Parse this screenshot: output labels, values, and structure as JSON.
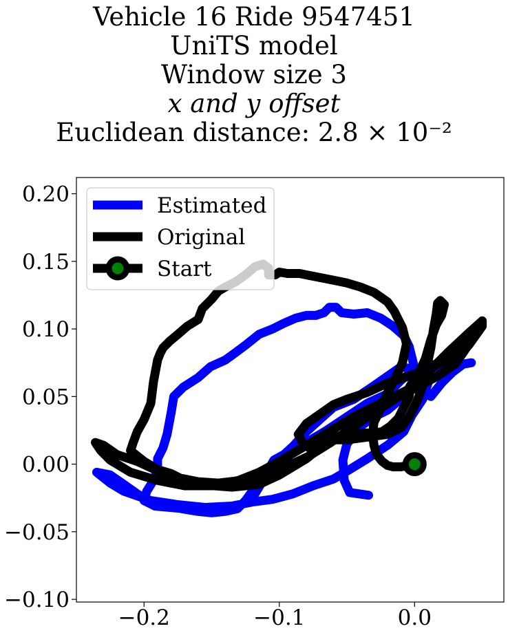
{
  "chart_data": {
    "type": "line",
    "title_lines": [
      "Vehicle 16 Ride 9547451",
      "UniTS model",
      "Window size 3",
      "x and y offset",
      "Euclidean distance: 2.8 × 10⁻²"
    ],
    "xlabel": "",
    "ylabel": "",
    "xlim": [
      -0.25,
      0.066
    ],
    "ylim": [
      -0.102,
      0.212
    ],
    "x_ticks": [
      -0.2,
      -0.1,
      0.0
    ],
    "x_tick_labels": [
      "−0.2",
      "−0.1",
      "0.0"
    ],
    "y_ticks": [
      0.2,
      0.15,
      0.1,
      0.05,
      0.0,
      -0.05,
      -0.1
    ],
    "y_tick_labels": [
      "0.20",
      "0.15",
      "0.10",
      "0.05",
      "0.00",
      "−0.05",
      "−0.10"
    ],
    "grid": false,
    "legend_position": "top-left",
    "legend": [
      "Estimated",
      "Original",
      "Start"
    ],
    "series": [
      {
        "name": "Estimated",
        "color": "#0000ff",
        "points": [
          [
            -0.034,
            -0.023
          ],
          [
            -0.048,
            -0.021
          ],
          [
            -0.052,
            -0.012
          ],
          [
            -0.053,
            0.003
          ],
          [
            -0.05,
            0.015
          ],
          [
            -0.04,
            0.028
          ],
          [
            -0.03,
            0.035
          ],
          [
            -0.02,
            0.04
          ],
          [
            -0.008,
            0.05
          ],
          [
            -0.002,
            0.06
          ],
          [
            0.003,
            0.067
          ],
          [
            0.012,
            0.07
          ],
          [
            0.02,
            0.075
          ],
          [
            0.0,
            0.07
          ],
          [
            -0.01,
            0.062
          ],
          [
            -0.02,
            0.052
          ],
          [
            -0.035,
            0.045
          ],
          [
            -0.05,
            0.035
          ],
          [
            -0.065,
            0.025
          ],
          [
            -0.08,
            0.016
          ],
          [
            -0.095,
            0.008
          ],
          [
            -0.104,
            0.003
          ],
          [
            -0.108,
            -0.004
          ],
          [
            -0.114,
            -0.01
          ],
          [
            -0.12,
            -0.02
          ],
          [
            -0.125,
            -0.027
          ],
          [
            -0.131,
            -0.033
          ],
          [
            -0.14,
            -0.035
          ],
          [
            -0.15,
            -0.036
          ],
          [
            -0.16,
            -0.035
          ],
          [
            -0.172,
            -0.033
          ],
          [
            -0.185,
            -0.03
          ],
          [
            -0.195,
            -0.028
          ],
          [
            -0.205,
            -0.022
          ],
          [
            -0.215,
            -0.015
          ],
          [
            -0.225,
            -0.008
          ],
          [
            -0.235,
            -0.006
          ],
          [
            -0.225,
            -0.014
          ],
          [
            -0.215,
            -0.02
          ],
          [
            -0.195,
            -0.027
          ],
          [
            -0.175,
            -0.03
          ],
          [
            -0.155,
            -0.032
          ],
          [
            -0.135,
            -0.031
          ],
          [
            -0.12,
            -0.028
          ],
          [
            -0.105,
            -0.026
          ],
          [
            -0.09,
            -0.022
          ],
          [
            -0.075,
            -0.016
          ],
          [
            -0.06,
            -0.011
          ],
          [
            -0.048,
            -0.004
          ],
          [
            -0.035,
            0.004
          ],
          [
            -0.02,
            0.014
          ],
          [
            -0.008,
            0.024
          ],
          [
            -0.002,
            0.036
          ],
          [
            0.006,
            0.048
          ],
          [
            0.01,
            0.06
          ],
          [
            0.005,
            0.069
          ],
          [
            -0.01,
            0.072
          ],
          [
            -0.03,
            0.058
          ],
          [
            -0.045,
            0.048
          ],
          [
            -0.06,
            0.042
          ],
          [
            -0.07,
            0.033
          ],
          [
            -0.08,
            0.024
          ],
          [
            -0.09,
            0.013
          ],
          [
            -0.1,
            0.004
          ],
          [
            -0.105,
            -0.004
          ],
          [
            -0.112,
            -0.012
          ],
          [
            -0.118,
            -0.022
          ],
          [
            -0.128,
            -0.03
          ],
          [
            -0.15,
            -0.034
          ],
          [
            -0.17,
            -0.033
          ],
          [
            -0.192,
            -0.031
          ],
          [
            -0.2,
            -0.027
          ],
          [
            -0.198,
            -0.02
          ],
          [
            -0.193,
            -0.012
          ],
          [
            -0.19,
            -0.004
          ],
          [
            -0.19,
            0.004
          ],
          [
            -0.186,
            0.012
          ],
          [
            -0.183,
            0.022
          ],
          [
            -0.18,
            0.038
          ],
          [
            -0.178,
            0.05
          ],
          [
            -0.171,
            0.057
          ],
          [
            -0.16,
            0.064
          ],
          [
            -0.151,
            0.072
          ],
          [
            -0.14,
            0.077
          ],
          [
            -0.133,
            0.082
          ],
          [
            -0.125,
            0.088
          ],
          [
            -0.115,
            0.096
          ],
          [
            -0.105,
            0.1
          ],
          [
            -0.097,
            0.104
          ],
          [
            -0.088,
            0.108
          ],
          [
            -0.08,
            0.11
          ],
          [
            -0.073,
            0.11
          ],
          [
            -0.067,
            0.112
          ],
          [
            -0.063,
            0.116
          ],
          [
            -0.058,
            0.116
          ],
          [
            -0.054,
            0.112
          ],
          [
            -0.045,
            0.111
          ],
          [
            -0.035,
            0.112
          ],
          [
            -0.025,
            0.108
          ],
          [
            -0.016,
            0.102
          ],
          [
            -0.008,
            0.095
          ],
          [
            -0.004,
            0.087
          ],
          [
            -0.001,
            0.075
          ],
          [
            0.002,
            0.062
          ],
          [
            0.005,
            0.055
          ],
          [
            0.012,
            0.05
          ],
          [
            0.02,
            0.06
          ],
          [
            0.028,
            0.068
          ],
          [
            0.036,
            0.074
          ],
          [
            0.042,
            0.075
          ]
        ]
      },
      {
        "name": "Original",
        "color": "#000000",
        "points": [
          [
            0.0,
            0.0
          ],
          [
            -0.01,
            -0.002
          ],
          [
            -0.016,
            -0.002
          ],
          [
            -0.02,
            -0.001
          ],
          [
            -0.024,
            0.002
          ],
          [
            -0.028,
            0.007
          ],
          [
            -0.03,
            0.014
          ],
          [
            -0.031,
            0.022
          ],
          [
            -0.03,
            0.031
          ],
          [
            -0.026,
            0.039
          ],
          [
            -0.021,
            0.051
          ],
          [
            -0.015,
            0.062
          ],
          [
            -0.009,
            0.075
          ],
          [
            -0.006,
            0.089
          ],
          [
            -0.009,
            0.101
          ],
          [
            -0.015,
            0.113
          ],
          [
            -0.02,
            0.12
          ],
          [
            -0.03,
            0.127
          ],
          [
            -0.04,
            0.131
          ],
          [
            -0.05,
            0.134
          ],
          [
            -0.06,
            0.136
          ],
          [
            -0.07,
            0.138
          ],
          [
            -0.08,
            0.14
          ],
          [
            -0.085,
            0.141
          ],
          [
            -0.094,
            0.141
          ],
          [
            -0.1,
            0.142
          ],
          [
            -0.103,
            0.14
          ],
          [
            -0.108,
            0.14
          ],
          [
            -0.108,
            0.145
          ],
          [
            -0.112,
            0.148
          ],
          [
            -0.118,
            0.146
          ],
          [
            -0.125,
            0.14
          ],
          [
            -0.132,
            0.135
          ],
          [
            -0.14,
            0.131
          ],
          [
            -0.145,
            0.128
          ],
          [
            -0.15,
            0.122
          ],
          [
            -0.157,
            0.115
          ],
          [
            -0.16,
            0.107
          ],
          [
            -0.168,
            0.102
          ],
          [
            -0.175,
            0.096
          ],
          [
            -0.181,
            0.091
          ],
          [
            -0.186,
            0.086
          ],
          [
            -0.188,
            0.082
          ],
          [
            -0.19,
            0.077
          ],
          [
            -0.193,
            0.061
          ],
          [
            -0.195,
            0.045
          ],
          [
            -0.2,
            0.033
          ],
          [
            -0.205,
            0.024
          ],
          [
            -0.208,
            0.016
          ],
          [
            -0.21,
            0.01
          ],
          [
            -0.2,
            0.002
          ],
          [
            -0.19,
            -0.004
          ],
          [
            -0.18,
            -0.007
          ],
          [
            -0.17,
            -0.012
          ],
          [
            -0.16,
            -0.015
          ],
          [
            -0.148,
            -0.016
          ],
          [
            -0.135,
            -0.017
          ],
          [
            -0.125,
            -0.016
          ],
          [
            -0.115,
            -0.015
          ],
          [
            -0.1,
            -0.008
          ],
          [
            -0.09,
            -0.002
          ],
          [
            -0.08,
            0.004
          ],
          [
            -0.07,
            0.012
          ],
          [
            -0.06,
            0.02
          ],
          [
            -0.045,
            0.023
          ],
          [
            -0.03,
            0.023
          ],
          [
            -0.024,
            0.024
          ],
          [
            -0.018,
            0.028
          ],
          [
            -0.012,
            0.034
          ],
          [
            -0.008,
            0.042
          ],
          [
            -0.004,
            0.05
          ],
          [
            -0.003,
            0.058
          ],
          [
            0.002,
            0.065
          ],
          [
            0.008,
            0.078
          ],
          [
            0.012,
            0.092
          ],
          [
            0.016,
            0.103
          ],
          [
            0.02,
            0.11
          ],
          [
            0.022,
            0.118
          ],
          [
            0.019,
            0.121
          ],
          [
            0.017,
            0.119
          ],
          [
            0.016,
            0.111
          ],
          [
            0.014,
            0.1
          ],
          [
            0.012,
            0.086
          ],
          [
            0.009,
            0.072
          ],
          [
            0.006,
            0.058
          ],
          [
            0.002,
            0.047
          ],
          [
            -0.004,
            0.035
          ],
          [
            -0.01,
            0.027
          ],
          [
            -0.02,
            0.022
          ],
          [
            -0.035,
            0.02
          ],
          [
            -0.05,
            0.018
          ],
          [
            -0.065,
            0.018
          ],
          [
            -0.078,
            0.012
          ],
          [
            -0.083,
            0.016
          ],
          [
            -0.086,
            0.022
          ],
          [
            -0.08,
            0.03
          ],
          [
            -0.07,
            0.037
          ],
          [
            -0.06,
            0.044
          ],
          [
            -0.05,
            0.048
          ],
          [
            -0.035,
            0.053
          ],
          [
            -0.02,
            0.06
          ],
          [
            -0.005,
            0.065
          ],
          [
            0.01,
            0.07
          ],
          [
            0.025,
            0.078
          ],
          [
            0.04,
            0.088
          ],
          [
            0.05,
            0.102
          ],
          [
            0.05,
            0.106
          ],
          [
            0.04,
            0.097
          ],
          [
            0.025,
            0.083
          ],
          [
            0.01,
            0.068
          ],
          [
            -0.005,
            0.055
          ],
          [
            -0.025,
            0.045
          ],
          [
            -0.045,
            0.035
          ],
          [
            -0.065,
            0.023
          ],
          [
            -0.085,
            0.011
          ],
          [
            -0.1,
            0.002
          ],
          [
            -0.115,
            -0.006
          ],
          [
            -0.13,
            -0.012
          ],
          [
            -0.15,
            -0.016
          ],
          [
            -0.17,
            -0.016
          ],
          [
            -0.19,
            -0.012
          ],
          [
            -0.21,
            -0.006
          ],
          [
            -0.225,
            0.003
          ],
          [
            -0.232,
            0.01
          ],
          [
            -0.236,
            0.016
          ],
          [
            -0.23,
            0.014
          ],
          [
            -0.22,
            0.007
          ],
          [
            -0.205,
            0.002
          ],
          [
            -0.19,
            -0.005
          ],
          [
            -0.175,
            -0.01
          ],
          [
            -0.16,
            -0.013
          ],
          [
            -0.145,
            -0.014
          ],
          [
            -0.128,
            -0.012
          ],
          [
            -0.112,
            -0.008
          ],
          [
            -0.095,
            -0.002
          ],
          [
            -0.078,
            0.006
          ],
          [
            -0.062,
            0.016
          ],
          [
            -0.045,
            0.028
          ],
          [
            -0.03,
            0.038
          ],
          [
            -0.015,
            0.048
          ],
          [
            0.0,
            0.056
          ],
          [
            0.015,
            0.064
          ],
          [
            0.03,
            0.074
          ],
          [
            0.048,
            0.1
          ]
        ]
      }
    ],
    "start_point": {
      "name": "Start",
      "x": 0.0,
      "y": 0.0,
      "fill_color": "#008000",
      "edge_color": "#000000"
    }
  }
}
